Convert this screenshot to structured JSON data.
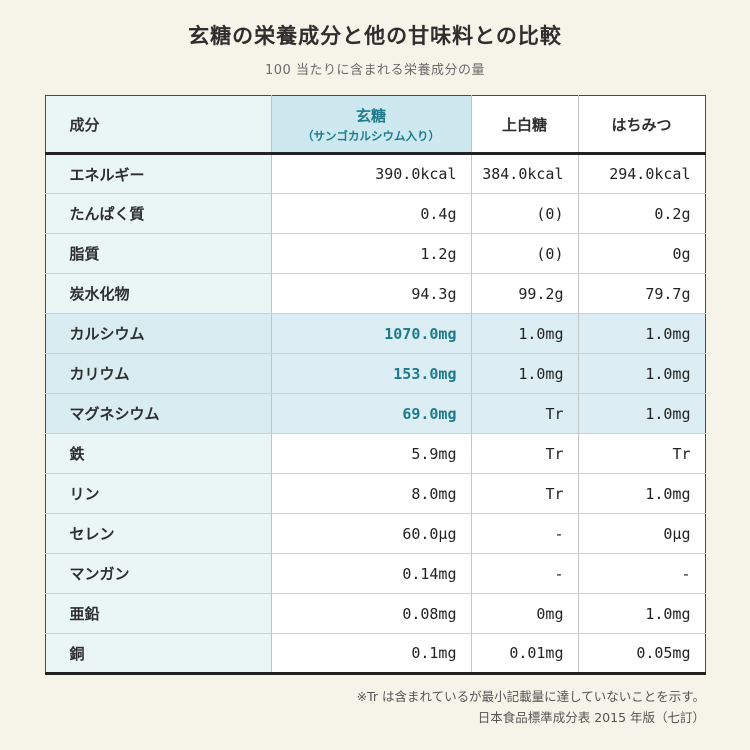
{
  "page": {
    "title": "玄糖の栄養成分と他の甘味料との比較",
    "subtitle": "100 当たりに含まれる栄養成分の量"
  },
  "chart_data": {
    "type": "table",
    "title": "玄糖の栄養成分と他の甘味料との比較",
    "subtitle": "100 当たりに含まれる栄養成分の量",
    "headers": {
      "component": "成分",
      "gentou_main": "玄糖",
      "gentou_sub": "（サンゴカルシウム入り）",
      "jouhakutou": "上白糖",
      "hachimitsu": "はちみつ"
    },
    "rows": [
      {
        "component": "エネルギー",
        "gentou": "390.0kcal",
        "jouhakutou": "384.0kcal",
        "hachimitsu": "294.0kcal",
        "highlight": false
      },
      {
        "component": "たんぱく質",
        "gentou": "0.4g",
        "jouhakutou": "(0)",
        "hachimitsu": "0.2g",
        "highlight": false
      },
      {
        "component": "脂質",
        "gentou": "1.2g",
        "jouhakutou": "(0)",
        "hachimitsu": "0g",
        "highlight": false
      },
      {
        "component": "炭水化物",
        "gentou": "94.3g",
        "jouhakutou": "99.2g",
        "hachimitsu": "79.7g",
        "highlight": false
      },
      {
        "component": "カルシウム",
        "gentou": "1070.0mg",
        "jouhakutou": "1.0mg",
        "hachimitsu": "1.0mg",
        "highlight": true
      },
      {
        "component": "カリウム",
        "gentou": "153.0mg",
        "jouhakutou": "1.0mg",
        "hachimitsu": "1.0mg",
        "highlight": true
      },
      {
        "component": "マグネシウム",
        "gentou": "69.0mg",
        "jouhakutou": "Tr",
        "hachimitsu": "1.0mg",
        "highlight": true
      },
      {
        "component": "鉄",
        "gentou": "5.9mg",
        "jouhakutou": "Tr",
        "hachimitsu": "Tr",
        "highlight": false
      },
      {
        "component": "リン",
        "gentou": "8.0mg",
        "jouhakutou": "Tr",
        "hachimitsu": "1.0mg",
        "highlight": false
      },
      {
        "component": "セレン",
        "gentou": "60.0μg",
        "jouhakutou": "-",
        "hachimitsu": "0μg",
        "highlight": false
      },
      {
        "component": "マンガン",
        "gentou": "0.14mg",
        "jouhakutou": "-",
        "hachimitsu": "-",
        "highlight": false
      },
      {
        "component": "亜鉛",
        "gentou": "0.08mg",
        "jouhakutou": "0mg",
        "hachimitsu": "1.0mg",
        "highlight": false
      },
      {
        "component": "銅",
        "gentou": "0.1mg",
        "jouhakutou": "0.01mg",
        "hachimitsu": "0.05mg",
        "highlight": false
      }
    ],
    "highlighted_rows": [
      "カルシウム",
      "カリウム",
      "マグネシウム"
    ],
    "footnotes": [
      "※Tr は含まれているが最小記載量に達していないことを示す。",
      "日本食品標準成分表 2015 年版（七訂）"
    ]
  },
  "colors": {
    "page-bg": "#f6f3e9",
    "accent": "#1e7b8c",
    "name-bg": "#eaf5f6",
    "gen-header-bg": "#cde9ef",
    "hl-bg": "#dceef3",
    "hl-name-bg": "#d8ecf1"
  }
}
